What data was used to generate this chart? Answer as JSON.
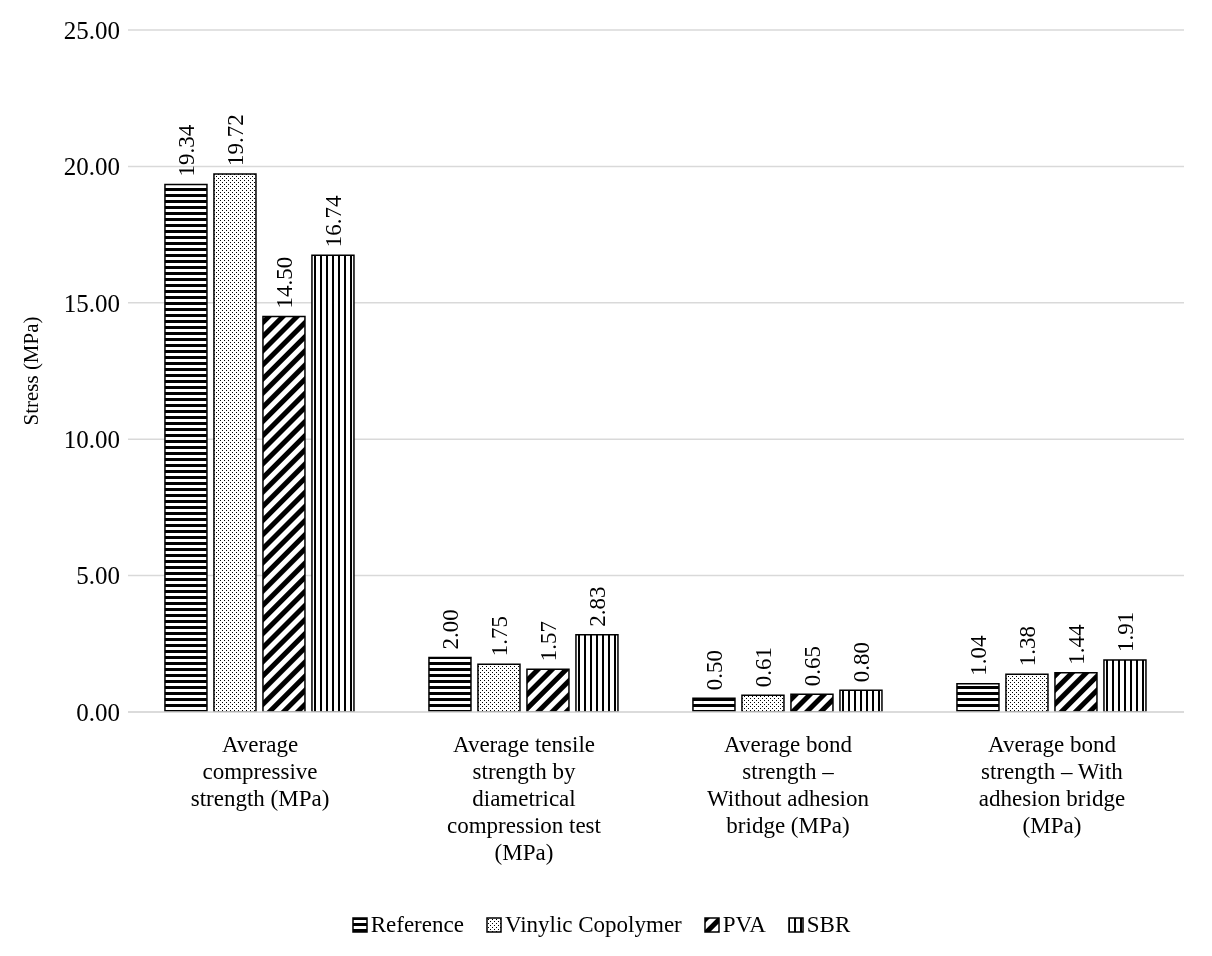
{
  "chart_data": {
    "type": "bar",
    "ylabel": "Stress (MPa)",
    "categories": [
      "Average compressive strength (MPa)",
      "Average tensile strength by diametrical compression test (MPa)",
      "Average bond strength – Without adhesion bridge (MPa)",
      "Average bond strength – With adhesion bridge (MPa)"
    ],
    "series": [
      {
        "name": "Reference",
        "color": "#000000",
        "values": [
          19.34,
          2.0,
          0.5,
          1.04
        ],
        "value_labels": [
          "19.34",
          "2.00",
          "0.50",
          "1.04"
        ]
      },
      {
        "name": "Vinylic Copolymer",
        "color": "#000000",
        "values": [
          19.72,
          1.75,
          0.61,
          1.38
        ],
        "value_labels": [
          "19.72",
          "1.75",
          "0.61",
          "1.38"
        ]
      },
      {
        "name": "PVA",
        "color": "#000000",
        "values": [
          14.5,
          1.57,
          0.65,
          1.44
        ],
        "value_labels": [
          "14.50",
          "1.57",
          "0.65",
          "1.44"
        ]
      },
      {
        "name": "SBR",
        "color": "#000000",
        "values": [
          16.74,
          2.83,
          0.8,
          1.91
        ],
        "value_labels": [
          "16.74",
          "2.83",
          "0.80",
          "1.91"
        ]
      }
    ],
    "ylim": [
      0,
      25
    ],
    "yticks": [
      {
        "value": 0,
        "label": "0.00"
      },
      {
        "value": 5,
        "label": "5.00"
      },
      {
        "value": 10,
        "label": "10.00"
      },
      {
        "value": 15,
        "label": "15.00"
      },
      {
        "value": 20,
        "label": "20.00"
      },
      {
        "value": 25,
        "label": "25.00"
      }
    ],
    "grid": "y",
    "legend": "bottom"
  }
}
